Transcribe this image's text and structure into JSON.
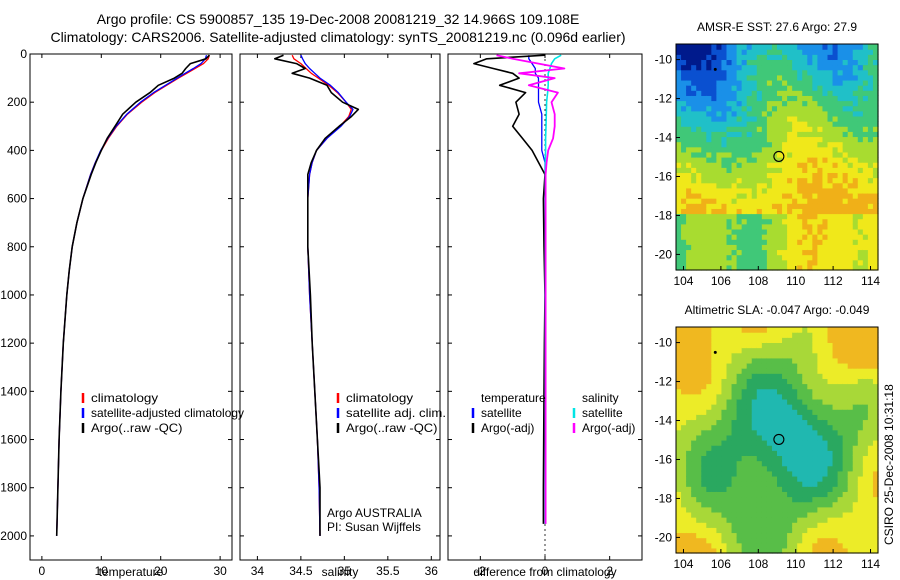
{
  "header": {
    "line1": "Argo profile: CS 5900857_135 19-Dec-2008 20081219_32 14.966S 109.108E",
    "line2": "Climatology: CARS2006. Satellite-adjusted climatology: synTS_20081219.nc (0.096d earlier)"
  },
  "colors": {
    "climatology": "#ff0000",
    "satellite": "#0000ff",
    "argo": "#000000",
    "salinity_satellite": "#00e5e5",
    "salinity_argo": "#ff00ff"
  },
  "chart_data": [
    {
      "type": "line",
      "name": "temperature-profile",
      "xlabel": "temperature",
      "ylabel": "",
      "xlim": [
        -2,
        32
      ],
      "ylim": [
        2100,
        0
      ],
      "xticks": [
        0,
        10,
        20,
        30
      ],
      "yticks": [
        0,
        200,
        400,
        600,
        800,
        1000,
        1200,
        1400,
        1600,
        1800,
        2000
      ],
      "legend_loc": "lower-right",
      "legend": [
        "climatology",
        "satellite-adjusted climatology",
        "Argo(..raw -QC)"
      ],
      "depth": [
        5,
        20,
        40,
        60,
        80,
        100,
        130,
        160,
        200,
        250,
        300,
        350,
        400,
        450,
        500,
        600,
        700,
        800,
        900,
        1000,
        1200,
        1400,
        1600,
        1800,
        2000
      ],
      "series": [
        {
          "name": "climatology",
          "values": [
            28.2,
            28.0,
            27.2,
            25.8,
            24.4,
            23.0,
            21.0,
            19.0,
            16.8,
            14.4,
            12.6,
            11.2,
            10.0,
            9.0,
            8.2,
            6.9,
            5.9,
            5.1,
            4.6,
            4.2,
            3.6,
            3.2,
            2.9,
            2.7,
            2.5
          ]
        },
        {
          "name": "satellite",
          "values": [
            27.7,
            27.5,
            26.8,
            25.5,
            24.1,
            22.8,
            20.8,
            18.8,
            16.6,
            14.3,
            12.5,
            11.1,
            9.9,
            9.0,
            8.2,
            6.9,
            5.9,
            5.1,
            4.6,
            4.2,
            3.6,
            3.2,
            2.9,
            2.7,
            2.5
          ]
        },
        {
          "name": "argo",
          "values": [
            28.2,
            27.6,
            25.0,
            24.2,
            23.6,
            22.3,
            19.6,
            18.2,
            15.8,
            13.6,
            12.3,
            11.0,
            10.0,
            9.1,
            8.3,
            6.9,
            5.9,
            5.1,
            4.6,
            4.2,
            3.6,
            3.2,
            2.9,
            2.7,
            2.5
          ]
        }
      ]
    },
    {
      "type": "line",
      "name": "salinity-profile",
      "xlabel": "salinity",
      "ylabel": "",
      "xlim": [
        33.8,
        36.1
      ],
      "ylim": [
        2100,
        0
      ],
      "xticks": [
        34,
        34.5,
        35,
        35.5,
        36
      ],
      "legend_loc": "lower-right",
      "legend": [
        "climatology",
        "satellite adj. clim.",
        "Argo(..raw -QC)"
      ],
      "annotation": [
        "Argo AUSTRALIA",
        "PI: Susan Wijffels"
      ],
      "depth": [
        5,
        20,
        40,
        60,
        80,
        100,
        130,
        160,
        200,
        230,
        260,
        300,
        350,
        400,
        450,
        500,
        600,
        800,
        1000,
        1200,
        1400,
        1600,
        1800,
        2000
      ],
      "series": [
        {
          "name": "climatology",
          "values": [
            34.4,
            34.42,
            34.5,
            34.56,
            34.62,
            34.7,
            34.82,
            34.92,
            35.02,
            35.08,
            35.05,
            34.95,
            34.8,
            34.68,
            34.63,
            34.6,
            34.58,
            34.58,
            34.6,
            34.63,
            34.66,
            34.69,
            34.71,
            34.72
          ]
        },
        {
          "name": "satellite",
          "values": [
            34.5,
            34.52,
            34.55,
            34.6,
            34.66,
            34.72,
            34.84,
            34.93,
            35.02,
            35.1,
            35.06,
            34.96,
            34.8,
            34.68,
            34.63,
            34.6,
            34.58,
            34.58,
            34.6,
            34.63,
            34.66,
            34.69,
            34.71,
            34.72
          ]
        },
        {
          "name": "argo",
          "values": [
            34.3,
            34.2,
            34.45,
            34.55,
            34.4,
            34.6,
            34.8,
            34.85,
            34.98,
            35.16,
            35.08,
            34.94,
            34.78,
            34.68,
            34.62,
            34.58,
            34.58,
            34.58,
            34.61,
            34.63,
            34.66,
            34.69,
            34.72,
            34.72
          ]
        }
      ]
    },
    {
      "type": "line",
      "name": "difference-profile",
      "xlabel": "difference from climatology",
      "ylabel": "",
      "xlim": [
        -3.0,
        3.0
      ],
      "ylim": [
        2100,
        0
      ],
      "xticks": [
        -2,
        0,
        2
      ],
      "legend_loc": "lower-center",
      "legend_groups": [
        {
          "title": "temperature",
          "items": [
            "satellite",
            "Argo(-adj)"
          ]
        },
        {
          "title": "salinity",
          "items": [
            "satellite",
            "Argo(-adj)"
          ]
        }
      ],
      "depth": [
        5,
        20,
        40,
        60,
        80,
        100,
        130,
        160,
        200,
        250,
        300,
        350,
        400,
        450,
        500,
        600,
        800,
        1000,
        1200,
        1400,
        1600,
        1800,
        1950
      ],
      "series": [
        {
          "name": "temperature satellite",
          "values": [
            -0.5,
            -0.5,
            -0.4,
            -0.3,
            -0.3,
            -0.2,
            -0.2,
            -0.2,
            -0.2,
            -0.1,
            -0.1,
            -0.1,
            -0.1,
            0.0,
            0.0,
            0.0,
            0.0,
            0.0,
            0.0,
            0.0,
            0.0,
            0.0,
            0.0
          ]
        },
        {
          "name": "temperature Argo(-adj)",
          "values": [
            0.0,
            -1.8,
            -2.2,
            -1.6,
            -1.0,
            -0.8,
            -1.4,
            -0.6,
            -0.9,
            -0.8,
            -1.0,
            -0.7,
            -0.4,
            -0.2,
            0.0,
            -0.05,
            -0.03,
            0.0,
            -0.02,
            -0.03,
            -0.04,
            -0.05,
            -0.05
          ]
        },
        {
          "name": "salinity satellite",
          "values": [
            0.5,
            0.3,
            0.2,
            0.15,
            0.1,
            0.1,
            0.1,
            0.08,
            0.05,
            0.04,
            0.03,
            0.02,
            0.02,
            0.01,
            0.01,
            0.01,
            0.01,
            0.01,
            0.01,
            0.01,
            0.01,
            0.01,
            0.01
          ]
        },
        {
          "name": "salinity Argo(-adj)",
          "values": [
            -1.5,
            -1.0,
            -0.2,
            0.6,
            -0.8,
            0.3,
            -0.5,
            0.4,
            0.2,
            0.3,
            0.3,
            0.25,
            0.1,
            0.05,
            0.02,
            0.02,
            0.02,
            0.02,
            0.02,
            0.02,
            0.02,
            0.02,
            0.02
          ]
        }
      ]
    },
    {
      "type": "heatmap",
      "name": "amsr-sst-map",
      "title": "AMSR-E SST: 27.6 Argo: 27.9",
      "xlim": [
        103.6,
        114.4
      ],
      "ylim": [
        -20.8,
        -9.2
      ],
      "xticks": [
        104,
        106,
        108,
        110,
        112,
        114
      ],
      "yticks": [
        -10,
        -12,
        -14,
        -16,
        -18,
        -20
      ],
      "argo_position": {
        "lon": 109.1,
        "lat": -14.97
      },
      "colors_low_to_high": [
        "#001a8c",
        "#0a50d0",
        "#1a90e8",
        "#20c0c8",
        "#40c878",
        "#a8dc30",
        "#f0e81a",
        "#f0b018"
      ]
    },
    {
      "type": "heatmap",
      "name": "altimetric-sla-map",
      "title": "Altimetric SLA: -0.047 Argo: -0.049",
      "xlim": [
        103.6,
        114.4
      ],
      "ylim": [
        -20.8,
        -9.2
      ],
      "xticks": [
        104,
        106,
        108,
        110,
        112,
        114
      ],
      "yticks": [
        -10,
        -12,
        -14,
        -16,
        -18,
        -20
      ],
      "argo_position": {
        "lon": 109.1,
        "lat": -14.97
      },
      "colors_low_to_high": [
        "#20b8b0",
        "#2aa860",
        "#58be48",
        "#a8d838",
        "#ecec28",
        "#f0b820"
      ]
    }
  ],
  "footer": {
    "side_label": "CSIRO 25-Dec-2008 10:31:18"
  }
}
